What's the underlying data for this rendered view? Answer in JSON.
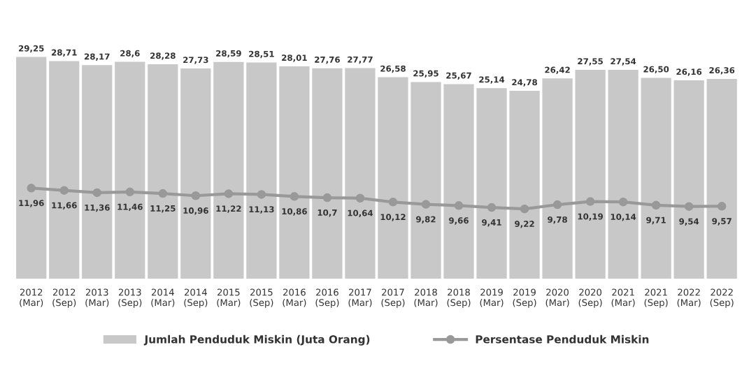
{
  "chart_data": {
    "type": "bar",
    "categories": [
      "2012\n(Mar)",
      "2012\n(Sep)",
      "2013\n(Mar)",
      "2013\n(Sep)",
      "2014\n(Mar)",
      "2014\n(Sep)",
      "2015\n(Mar)",
      "2015\n(Sep)",
      "2016\n(Mar)",
      "2016\n(Sep)",
      "2017\n(Mar)",
      "2017\n(Sep)",
      "2018\n(Mar)",
      "2018\n(Sep)",
      "2019\n(Mar)",
      "2019\n(Sep)",
      "2020\n(Mar)",
      "2020\n(Sep)",
      "2021\n(Mar)",
      "2021\n(Sep)",
      "2022\n(Mar)",
      "2022\n(Sep)"
    ],
    "series": [
      {
        "name": "Jumlah Penduduk Miskin (Juta Orang)",
        "color": "#c8c8c8",
        "values": [
          29.25,
          28.71,
          28.17,
          28.6,
          28.28,
          27.73,
          28.59,
          28.51,
          28.01,
          27.76,
          27.77,
          26.58,
          25.95,
          25.67,
          25.14,
          24.78,
          26.42,
          27.55,
          27.54,
          26.5,
          26.16,
          26.36
        ],
        "value_labels": [
          "29,25",
          "28,71",
          "28,17",
          "28,6",
          "28,28",
          "27,73",
          "28,59",
          "28,51",
          "28,01",
          "27,76",
          "27,77",
          "26,58",
          "25,95",
          "25,67",
          "25,14",
          "24,78",
          "26,42",
          "27,55",
          "27,54",
          "26,50",
          "26,16",
          "26,36"
        ]
      },
      {
        "name": "Persentase Penduduk Miskin",
        "type": "line",
        "color": "#999999",
        "marker": "circle",
        "values": [
          11.96,
          11.66,
          11.36,
          11.46,
          11.25,
          10.96,
          11.22,
          11.13,
          10.86,
          10.7,
          10.64,
          10.12,
          9.82,
          9.66,
          9.41,
          9.22,
          9.78,
          10.19,
          10.14,
          9.71,
          9.54,
          9.57
        ],
        "value_labels": [
          "11,96",
          "11,66",
          "11,36",
          "11,46",
          "11,25",
          "10,96",
          "11,22",
          "11,13",
          "10,86",
          "10,7",
          "10,64",
          "10,12",
          "9,82",
          "9,66",
          "9,41",
          "9,22",
          "9,78",
          "10,19",
          "10,14",
          "9,71",
          "9,54",
          "9,57"
        ]
      }
    ],
    "tick_labels": "x",
    "grid": false,
    "legend": "bottom"
  }
}
